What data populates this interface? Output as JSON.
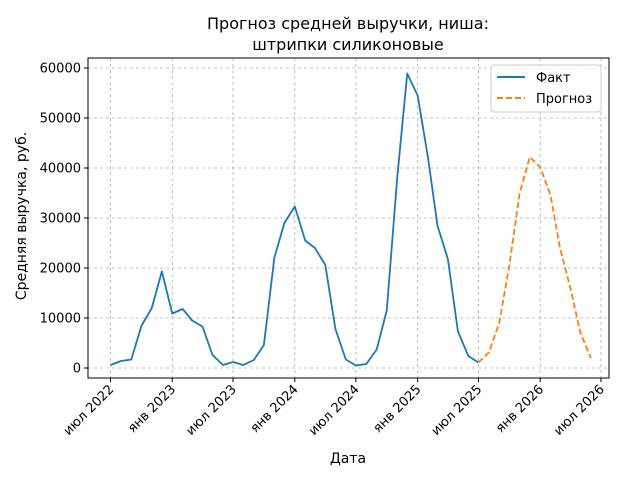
{
  "chart_data": {
    "type": "line",
    "title_lines": [
      "Прогноз средней выручки, ниша:",
      "штрипки силиконовые"
    ],
    "xlabel": "Дата",
    "ylabel": "Средняя выручка, руб.",
    "ylim": [
      -2000,
      62000
    ],
    "yticks": [
      0,
      10000,
      20000,
      30000,
      40000,
      50000,
      60000
    ],
    "ytick_labels": [
      "0",
      "10000",
      "20000",
      "30000",
      "40000",
      "50000",
      "60000"
    ],
    "xlim": [
      "2022-04-25",
      "2026-07-25"
    ],
    "xticks": [
      "2022-07-01",
      "2023-01-01",
      "2023-07-01",
      "2024-01-01",
      "2024-07-01",
      "2025-01-01",
      "2025-07-01",
      "2026-01-01",
      "2026-07-01"
    ],
    "xtick_labels": [
      "июл 2022",
      "янв 2023",
      "июл 2023",
      "янв 2024",
      "июл 2024",
      "янв 2025",
      "июл 2025",
      "янв 2026",
      "июл 2026"
    ],
    "grid": true,
    "legend_position": "top-right",
    "series": [
      {
        "name": "Факт",
        "color": "#1f77b4",
        "style": "solid",
        "points": [
          [
            "2022-07-01",
            600
          ],
          [
            "2022-08-01",
            1400
          ],
          [
            "2022-09-01",
            1700
          ],
          [
            "2022-10-01",
            8400
          ],
          [
            "2022-11-01",
            12000
          ],
          [
            "2022-12-01",
            19300
          ],
          [
            "2023-01-01",
            10900
          ],
          [
            "2023-02-01",
            11800
          ],
          [
            "2023-03-01",
            9500
          ],
          [
            "2023-04-01",
            8300
          ],
          [
            "2023-05-01",
            2600
          ],
          [
            "2023-06-01",
            600
          ],
          [
            "2023-07-01",
            1200
          ],
          [
            "2023-08-01",
            600
          ],
          [
            "2023-09-01",
            1600
          ],
          [
            "2023-10-01",
            4600
          ],
          [
            "2023-11-01",
            22000
          ],
          [
            "2023-12-01",
            29000
          ],
          [
            "2024-01-01",
            32300
          ],
          [
            "2024-02-01",
            25500
          ],
          [
            "2024-03-01",
            24000
          ],
          [
            "2024-04-01",
            20600
          ],
          [
            "2024-05-01",
            7800
          ],
          [
            "2024-06-01",
            1700
          ],
          [
            "2024-07-01",
            500
          ],
          [
            "2024-08-01",
            800
          ],
          [
            "2024-09-01",
            3700
          ],
          [
            "2024-10-01",
            11500
          ],
          [
            "2024-11-01",
            38000
          ],
          [
            "2024-12-01",
            58900
          ],
          [
            "2025-01-01",
            54500
          ],
          [
            "2025-02-01",
            42000
          ],
          [
            "2025-03-01",
            28500
          ],
          [
            "2025-04-01",
            21800
          ],
          [
            "2025-05-01",
            7300
          ],
          [
            "2025-06-01",
            2400
          ],
          [
            "2025-07-01",
            1100
          ]
        ]
      },
      {
        "name": "Прогноз",
        "color": "#ff7f0e",
        "style": "dashed",
        "points": [
          [
            "2025-07-01",
            1100
          ],
          [
            "2025-08-01",
            3100
          ],
          [
            "2025-09-01",
            9000
          ],
          [
            "2025-10-01",
            20500
          ],
          [
            "2025-11-01",
            35000
          ],
          [
            "2025-12-01",
            42200
          ],
          [
            "2026-01-01",
            40200
          ],
          [
            "2026-02-01",
            34500
          ],
          [
            "2026-03-01",
            24000
          ],
          [
            "2026-04-01",
            16000
          ],
          [
            "2026-05-01",
            7000
          ],
          [
            "2026-06-01",
            2000
          ]
        ]
      }
    ]
  }
}
